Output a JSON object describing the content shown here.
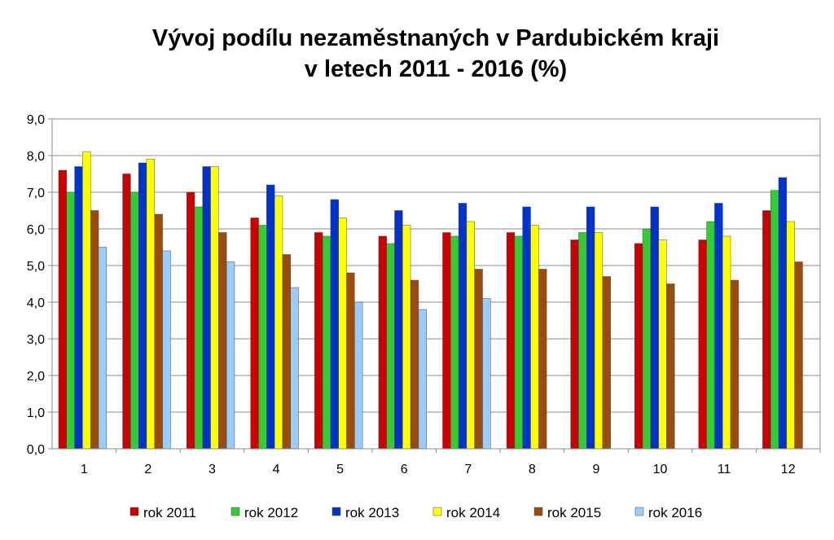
{
  "chart_data": {
    "type": "bar",
    "title_line1": "Vývoj podílu nezaměstnaných v Pardubickém kraji",
    "title_line2": "v letech 2011 - 2016 (%)",
    "xlabel": "",
    "ylabel": "",
    "ylim": [
      0,
      9
    ],
    "yticks": [
      "0,0",
      "1,0",
      "2,0",
      "3,0",
      "4,0",
      "5,0",
      "6,0",
      "7,0",
      "8,0",
      "9,0"
    ],
    "categories": [
      "1",
      "2",
      "3",
      "4",
      "5",
      "6",
      "7",
      "8",
      "9",
      "10",
      "11",
      "12"
    ],
    "grid": true,
    "legend_position": "bottom",
    "series": [
      {
        "name": "rok 2011",
        "color": "#cc0000",
        "values": [
          7.6,
          7.5,
          7.0,
          6.3,
          5.9,
          5.8,
          5.9,
          5.9,
          5.7,
          5.6,
          5.7,
          6.5
        ]
      },
      {
        "name": "rok 2012",
        "color": "#33cc33",
        "values": [
          7.0,
          7.0,
          6.6,
          6.1,
          5.8,
          5.6,
          5.8,
          5.8,
          5.9,
          6.0,
          6.2,
          7.05
        ]
      },
      {
        "name": "rok 2013",
        "color": "#0033cc",
        "values": [
          7.7,
          7.8,
          7.7,
          7.2,
          6.8,
          6.5,
          6.7,
          6.6,
          6.6,
          6.6,
          6.7,
          7.4
        ]
      },
      {
        "name": "rok 2014",
        "color": "#ffff00",
        "values": [
          8.1,
          7.9,
          7.7,
          6.9,
          6.3,
          6.1,
          6.2,
          6.1,
          5.9,
          5.7,
          5.8,
          6.2
        ]
      },
      {
        "name": "rok 2015",
        "color": "#994c0f",
        "values": [
          6.5,
          6.4,
          5.9,
          5.3,
          4.8,
          4.6,
          4.9,
          4.9,
          4.7,
          4.5,
          4.6,
          5.1
        ]
      },
      {
        "name": "rok 2016",
        "color": "#99ccff",
        "values": [
          5.5,
          5.4,
          5.1,
          4.4,
          4.0,
          3.8,
          4.1,
          null,
          null,
          null,
          null,
          null
        ]
      }
    ]
  }
}
